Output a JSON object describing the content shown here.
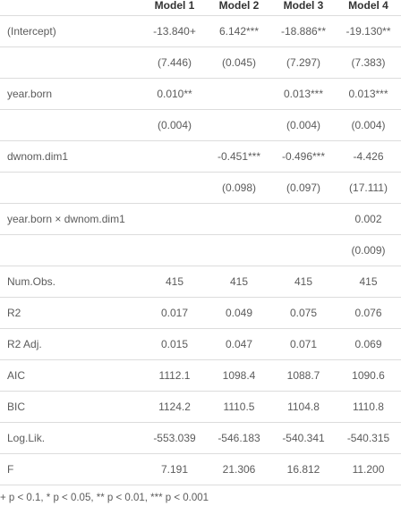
{
  "header": [
    "",
    "Model 1",
    "Model 2",
    "Model 3",
    "Model 4"
  ],
  "rows": [
    [
      "(Intercept)",
      "-13.840+",
      "6.142***",
      "-18.886**",
      "-19.130**"
    ],
    [
      "",
      "(7.446)",
      "(0.045)",
      "(7.297)",
      "(7.383)"
    ],
    [
      "year.born",
      "0.010**",
      "",
      "0.013***",
      "0.013***"
    ],
    [
      "",
      "(0.004)",
      "",
      "(0.004)",
      "(0.004)"
    ],
    [
      "dwnom.dim1",
      "",
      "-0.451***",
      "-0.496***",
      "-4.426"
    ],
    [
      "",
      "",
      "(0.098)",
      "(0.097)",
      "(17.111)"
    ],
    [
      "year.born × dwnom.dim1",
      "",
      "",
      "",
      "0.002"
    ],
    [
      "",
      "",
      "",
      "",
      "(0.009)"
    ],
    [
      "Num.Obs.",
      "415",
      "415",
      "415",
      "415"
    ],
    [
      "R2",
      "0.017",
      "0.049",
      "0.075",
      "0.076"
    ],
    [
      "R2 Adj.",
      "0.015",
      "0.047",
      "0.071",
      "0.069"
    ],
    [
      "AIC",
      "1112.1",
      "1098.4",
      "1088.7",
      "1090.6"
    ],
    [
      "BIC",
      "1124.2",
      "1110.5",
      "1104.8",
      "1110.8"
    ],
    [
      "Log.Lik.",
      "-553.039",
      "-546.183",
      "-540.341",
      "-540.315"
    ],
    [
      "F",
      "7.191",
      "21.306",
      "16.812",
      "11.200"
    ]
  ],
  "footnote": "+ p < 0.1, * p < 0.05, ** p < 0.01, *** p < 0.001"
}
